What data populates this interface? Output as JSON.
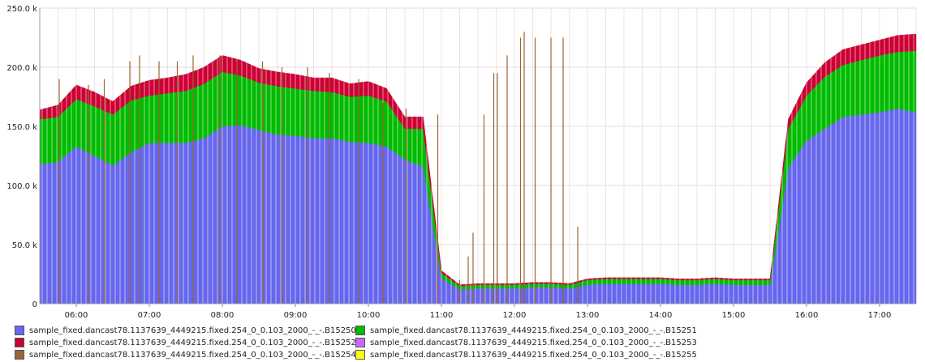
{
  "chart_data": {
    "type": "area",
    "stacked": true,
    "x": [
      "05:30",
      "05:45",
      "06:00",
      "06:15",
      "06:30",
      "06:45",
      "07:00",
      "07:15",
      "07:30",
      "07:45",
      "08:00",
      "08:15",
      "08:30",
      "08:45",
      "09:00",
      "09:15",
      "09:30",
      "09:45",
      "10:00",
      "10:15",
      "10:30",
      "10:45",
      "11:00",
      "11:15",
      "11:30",
      "11:45",
      "12:00",
      "12:15",
      "12:30",
      "12:45",
      "13:00",
      "13:15",
      "13:30",
      "13:45",
      "14:00",
      "14:15",
      "14:30",
      "14:45",
      "15:00",
      "15:15",
      "15:30",
      "15:45",
      "16:00",
      "16:15",
      "16:30",
      "16:45",
      "17:00",
      "17:15",
      "17:30"
    ],
    "series": [
      {
        "name": "sample_fixed.dancast78.1137639_4449215.fixed.254_0_0.103_2000_-_-.B15250",
        "color": "#6666ee",
        "values": [
          118,
          120,
          133,
          125,
          117,
          128,
          136,
          136,
          136,
          140,
          150,
          151,
          147,
          143,
          142,
          140,
          140,
          137,
          136,
          133,
          122,
          116,
          22,
          12,
          13,
          13,
          13,
          14,
          14,
          13,
          16,
          17,
          17,
          17,
          17,
          16,
          16,
          17,
          16,
          16,
          16,
          115,
          138,
          148,
          158,
          160,
          162,
          165,
          162
        ]
      },
      {
        "name": "sample_fixed.dancast78.1137639_4449215.fixed.254_0_0.103_2000_-_-.B15251",
        "color": "#00bb00",
        "values": [
          38,
          38,
          40,
          42,
          43,
          44,
          40,
          42,
          44,
          46,
          46,
          42,
          40,
          41,
          40,
          40,
          39,
          38,
          40,
          38,
          26,
          32,
          4,
          3,
          3,
          3,
          3,
          3,
          3,
          3,
          4,
          4,
          4,
          4,
          4,
          4,
          4,
          4,
          4,
          4,
          4,
          33,
          38,
          44,
          44,
          46,
          48,
          48,
          52
        ]
      },
      {
        "name": "sample_fixed.dancast78.1137639_4449215.fixed.254_0_0.103_2000_-_-.B15252",
        "color": "#cc0033",
        "values": [
          8,
          10,
          12,
          12,
          11,
          12,
          13,
          13,
          14,
          14,
          14,
          13,
          12,
          12,
          12,
          11,
          12,
          11,
          12,
          11,
          10,
          10,
          2,
          1,
          1,
          1,
          1,
          1,
          1,
          1,
          1,
          1,
          1,
          1,
          1,
          1,
          1,
          1,
          1,
          1,
          1,
          8,
          11,
          12,
          13,
          13,
          13,
          14,
          14
        ]
      },
      {
        "name": "sample_fixed.dancast78.1137639_4449215.fixed.254_0_0.103_2000_-_-.B15254",
        "color": "#996633",
        "values": [
          0,
          0,
          0,
          0,
          0,
          0,
          0,
          0,
          0,
          0,
          0,
          0,
          0,
          0,
          0,
          0,
          0,
          0,
          0,
          0,
          0,
          0,
          0,
          0,
          0,
          0,
          0,
          0,
          0,
          0,
          0,
          0,
          0,
          0,
          0,
          0,
          0,
          0,
          0,
          0,
          0,
          0,
          0,
          0,
          0,
          0,
          0,
          0,
          0
        ]
      },
      {
        "name": "sample_fixed.dancast78.1137639_4449215.fixed.254_0_0.103_2000_-_-.B15253",
        "color": "#cc66ff",
        "values": [
          0,
          0,
          0,
          0,
          0,
          0,
          0,
          0,
          0,
          0,
          0,
          0,
          0,
          0,
          0,
          0,
          0,
          0,
          0,
          0,
          0,
          0,
          0,
          0,
          0,
          0,
          0,
          0,
          0,
          0,
          0,
          0,
          0,
          0,
          0,
          0,
          0,
          0,
          0,
          0,
          0,
          0,
          0,
          0,
          0,
          0,
          0,
          0,
          0
        ]
      },
      {
        "name": "sample_fixed.dancast78.1137639_4449215.fixed.254_0_0.103_2000_-_-.B15255",
        "color": "#ffff00",
        "values": [
          0,
          0,
          0,
          0,
          0,
          0,
          0,
          0,
          0,
          0,
          0,
          0,
          0,
          0,
          0,
          0,
          0,
          0,
          0,
          0,
          0,
          0,
          0,
          0,
          0,
          0,
          0,
          0,
          0,
          0,
          0,
          0,
          0,
          0,
          0,
          0,
          0,
          0,
          0,
          0,
          0,
          0,
          0,
          0,
          0,
          0,
          0,
          0,
          0
        ]
      }
    ],
    "spikes": {
      "series": "sample_fixed.dancast78.1137639_4449215.fixed.254_0_0.103_2000_-_-.B15254",
      "points": [
        {
          "x": "05:46",
          "y": 190
        },
        {
          "x": "06:10",
          "y": 185
        },
        {
          "x": "06:23",
          "y": 190
        },
        {
          "x": "06:44",
          "y": 205
        },
        {
          "x": "06:52",
          "y": 210
        },
        {
          "x": "07:08",
          "y": 205
        },
        {
          "x": "07:23",
          "y": 205
        },
        {
          "x": "07:36",
          "y": 210
        },
        {
          "x": "07:58",
          "y": 210
        },
        {
          "x": "08:12",
          "y": 205
        },
        {
          "x": "08:33",
          "y": 205
        },
        {
          "x": "08:49",
          "y": 200
        },
        {
          "x": "09:10",
          "y": 200
        },
        {
          "x": "09:28",
          "y": 195
        },
        {
          "x": "09:52",
          "y": 190
        },
        {
          "x": "10:12",
          "y": 170
        },
        {
          "x": "10:31",
          "y": 165
        },
        {
          "x": "10:57",
          "y": 160
        },
        {
          "x": "11:15",
          "y": 20
        },
        {
          "x": "11:22",
          "y": 40
        },
        {
          "x": "11:26",
          "y": 60
        },
        {
          "x": "11:35",
          "y": 160
        },
        {
          "x": "11:43",
          "y": 195
        },
        {
          "x": "11:46",
          "y": 195
        },
        {
          "x": "11:54",
          "y": 210
        },
        {
          "x": "12:05",
          "y": 225
        },
        {
          "x": "12:08",
          "y": 230
        },
        {
          "x": "12:17",
          "y": 225
        },
        {
          "x": "12:30",
          "y": 225
        },
        {
          "x": "12:40",
          "y": 225
        },
        {
          "x": "12:52",
          "y": 65
        }
      ]
    },
    "title": "",
    "xlabel": "",
    "ylabel": "",
    "ylim": [
      0,
      250
    ],
    "xlim": [
      "05:30",
      "17:30"
    ],
    "x_ticks": [
      "06:00",
      "07:00",
      "08:00",
      "09:00",
      "10:00",
      "11:00",
      "12:00",
      "13:00",
      "14:00",
      "15:00",
      "16:00",
      "17:00"
    ],
    "y_ticks": [
      0,
      50,
      100,
      150,
      200,
      250
    ],
    "y_tick_labels": [
      "0",
      "50.0 k",
      "100.0 k",
      "150.0 k",
      "200.0 k",
      "250.0 k"
    ],
    "grid": true,
    "legend_position": "bottom"
  },
  "legend": [
    {
      "label": "sample_fixed.dancast78.1137639_4449215.fixed.254_0_0.103_2000_-_-.B15250",
      "color": "#6666ee"
    },
    {
      "label": "sample_fixed.dancast78.1137639_4449215.fixed.254_0_0.103_2000_-_-.B15251",
      "color": "#00bb00"
    },
    {
      "label": "sample_fixed.dancast78.1137639_4449215.fixed.254_0_0.103_2000_-_-.B15252",
      "color": "#cc0033"
    },
    {
      "label": "sample_fixed.dancast78.1137639_4449215.fixed.254_0_0.103_2000_-_-.B15253",
      "color": "#cc66ff"
    },
    {
      "label": "sample_fixed.dancast78.1137639_4449215.fixed.254_0_0.103_2000_-_-.B15254",
      "color": "#996633"
    },
    {
      "label": "sample_fixed.dancast78.1137639_4449215.fixed.254_0_0.103_2000_-_-.B15255",
      "color": "#ffff00"
    }
  ]
}
